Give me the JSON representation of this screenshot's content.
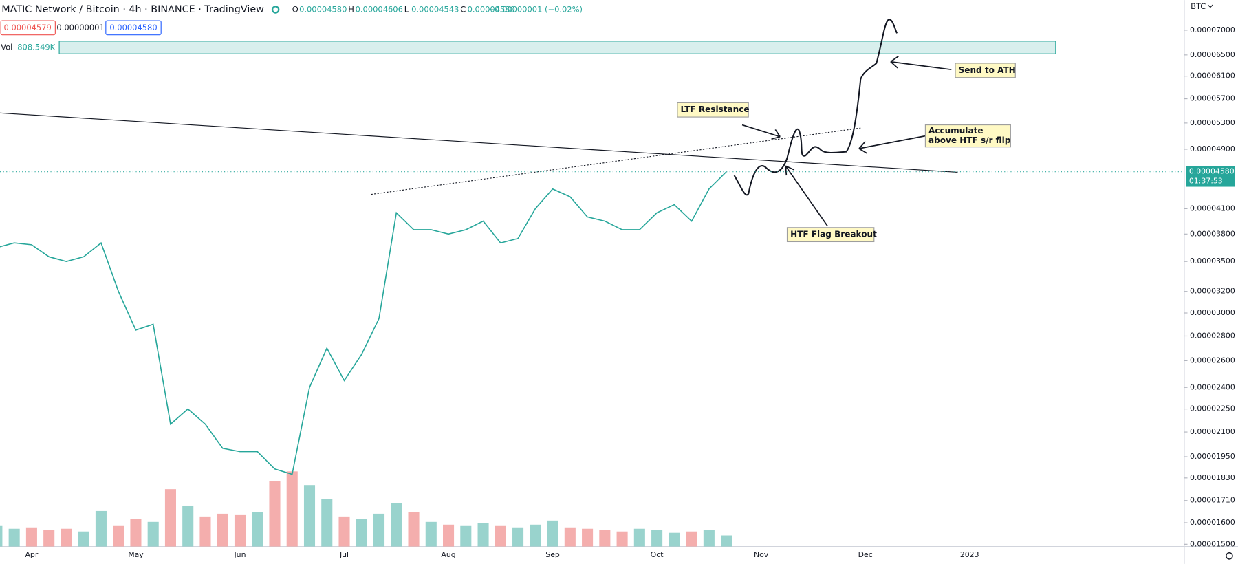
{
  "chart_data": {
    "type": "line",
    "title": "MATIC Network / Bitcoin · 4h · BINANCE · TradingView",
    "ohlc": [
      {
        "key": "O",
        "value": "0.00004580"
      },
      {
        "key": "H",
        "value": "0.00004606"
      },
      {
        "key": "L",
        "value": "0.00004543"
      },
      {
        "key": "C",
        "value": "0.00004580"
      }
    ],
    "change": "−0.00000001 (−0.02%)",
    "buttons": [
      "0.00004579",
      "0.00000001",
      "0.00004580"
    ],
    "volume_label": "Vol",
    "volume_value": "808.549K",
    "currency": "BTC",
    "last_price_label": "0.00004580",
    "countdown": "01:37:53",
    "annotations": {
      "ltf": "LTF Resistance",
      "ath": "Send to ATH",
      "accumulate": [
        "Accumulate",
        "above HTF s/r flip"
      ],
      "breakout": "HTF Flag Breakout"
    },
    "log_scale": true,
    "grid": false,
    "categories": [
      null,
      null,
      "Apr",
      null,
      null,
      null,
      null,
      null,
      "May",
      null,
      null,
      null,
      null,
      null,
      "Jun",
      null,
      null,
      null,
      null,
      null,
      "Jul",
      null,
      null,
      null,
      null,
      null,
      "Aug",
      null,
      null,
      null,
      null,
      null,
      "Sep",
      null,
      null,
      null,
      null,
      null,
      "Oct",
      null,
      null,
      null,
      null,
      null,
      "Nov",
      null,
      null,
      null,
      null,
      null,
      "Dec",
      null,
      null,
      null,
      null,
      null,
      "2023",
      null,
      null,
      null,
      null,
      null,
      null,
      null,
      null,
      null,
      null,
      null
    ],
    "series": [
      {
        "name": "MATIC/BTC",
        "color": "#26a69a",
        "values": [
          3.65e-05,
          3.7e-05,
          3.68e-05,
          3.55e-05,
          3.5e-05,
          3.55e-05,
          3.7e-05,
          3.2e-05,
          2.85e-05,
          2.9e-05,
          2.15e-05,
          2.25e-05,
          2.15e-05,
          2e-05,
          1.98e-05,
          1.98e-05,
          1.88e-05,
          1.85e-05,
          2.4e-05,
          2.7e-05,
          2.45e-05,
          2.65e-05,
          2.95e-05,
          4.05e-05,
          3.85e-05,
          3.85e-05,
          3.8e-05,
          3.85e-05,
          3.95e-05,
          3.7e-05,
          3.75e-05,
          4.1e-05,
          4.35e-05,
          4.25e-05,
          4e-05,
          3.95e-05,
          3.85e-05,
          3.85e-05,
          4.05e-05,
          4.15e-05,
          3.95e-05,
          4.35e-05,
          4.58e-05,
          null,
          null,
          null,
          null,
          null,
          null,
          null,
          null,
          null,
          null,
          null,
          null,
          null,
          null,
          null,
          null,
          null,
          null,
          null,
          null,
          null,
          null,
          null,
          null,
          null
        ]
      },
      {
        "name": "Vol",
        "color": "#7fc8c1",
        "axis": "y2",
        "values": [
          1500,
          1300,
          1400,
          1200,
          1300,
          1100,
          2600,
          1500,
          2000,
          1800,
          4200,
          3000,
          2200,
          2400,
          2300,
          2500,
          4800,
          5500,
          4500,
          3500,
          2200,
          2000,
          2400,
          3200,
          2500,
          1800,
          1600,
          1500,
          1700,
          1500,
          1400,
          1600,
          1900,
          1400,
          1300,
          1200,
          1100,
          1300,
          1200,
          1000,
          1100,
          1200,
          808.549,
          null,
          null,
          null,
          null,
          null,
          null,
          null,
          null,
          null,
          null,
          null,
          null,
          null,
          null,
          null,
          null,
          null,
          null,
          null,
          null,
          null,
          null,
          null,
          null,
          null
        ]
      }
    ],
    "ylim": [
      1.49e-05,
      7.66e-05
    ],
    "yticks": [
      {
        "value": 7e-05,
        "label": "0.00007000"
      },
      {
        "value": 6.5e-05,
        "label": "0.00006500"
      },
      {
        "value": 6.1e-05,
        "label": "0.00006100"
      },
      {
        "value": 5.7e-05,
        "label": "0.00005700"
      },
      {
        "value": 5.3e-05,
        "label": "0.00005300"
      },
      {
        "value": 4.9e-05,
        "label": "0.00004900"
      },
      {
        "value": 4.1e-05,
        "label": "0.00004100"
      },
      {
        "value": 3.8e-05,
        "label": "0.00003800"
      },
      {
        "value": 3.5e-05,
        "label": "0.00003500"
      },
      {
        "value": 3.2e-05,
        "label": "0.00003200"
      },
      {
        "value": 3e-05,
        "label": "0.00003000"
      },
      {
        "value": 2.8e-05,
        "label": "0.00002800"
      },
      {
        "value": 2.6e-05,
        "label": "0.00002600"
      },
      {
        "value": 2.4e-05,
        "label": "0.00002400"
      },
      {
        "value": 2.25e-05,
        "label": "0.00002250"
      },
      {
        "value": 2.1e-05,
        "label": "0.00002100"
      },
      {
        "value": 1.95e-05,
        "label": "0.00001950"
      },
      {
        "value": 1.83e-05,
        "label": "0.00001830"
      },
      {
        "value": 1.71e-05,
        "label": "0.00001710"
      },
      {
        "value": 1.6e-05,
        "label": "0.00001600"
      },
      {
        "value": 1.5e-05,
        "label": "0.00001500"
      }
    ],
    "y2lim": [
      0,
      40000
    ]
  }
}
